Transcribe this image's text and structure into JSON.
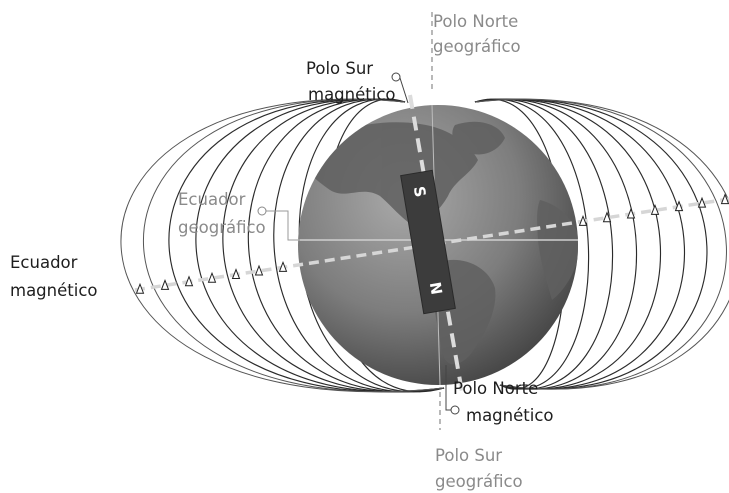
{
  "labels": {
    "geo_north_line1": "Polo Norte",
    "geo_north_line2": "geográfico",
    "mag_south_line1": "Polo Sur",
    "mag_south_line2": "magnético",
    "geo_equator_line1": "Ecuador",
    "geo_equator_line2": "geográfico",
    "mag_equator_line1": "Ecuador",
    "mag_equator_line2": "magnético",
    "mag_north_line1": "Polo Norte",
    "mag_north_line2": "magnético",
    "geo_south_line1": "Polo Sur",
    "geo_south_line2": "geográfico"
  },
  "magnet": {
    "south_letter": "S",
    "north_letter": "N"
  },
  "colors": {
    "globe_base": "#7d7d7d",
    "globe_land": "#5e5e5e",
    "magnet": "#3c3c3c",
    "field_lines": "#2b2b2b",
    "magnetic_axis": "#d8d8d8",
    "geographic_axis": "#8a8a8a",
    "label_dark": "#1e1e1e",
    "label_gray": "#8a8a8a"
  }
}
